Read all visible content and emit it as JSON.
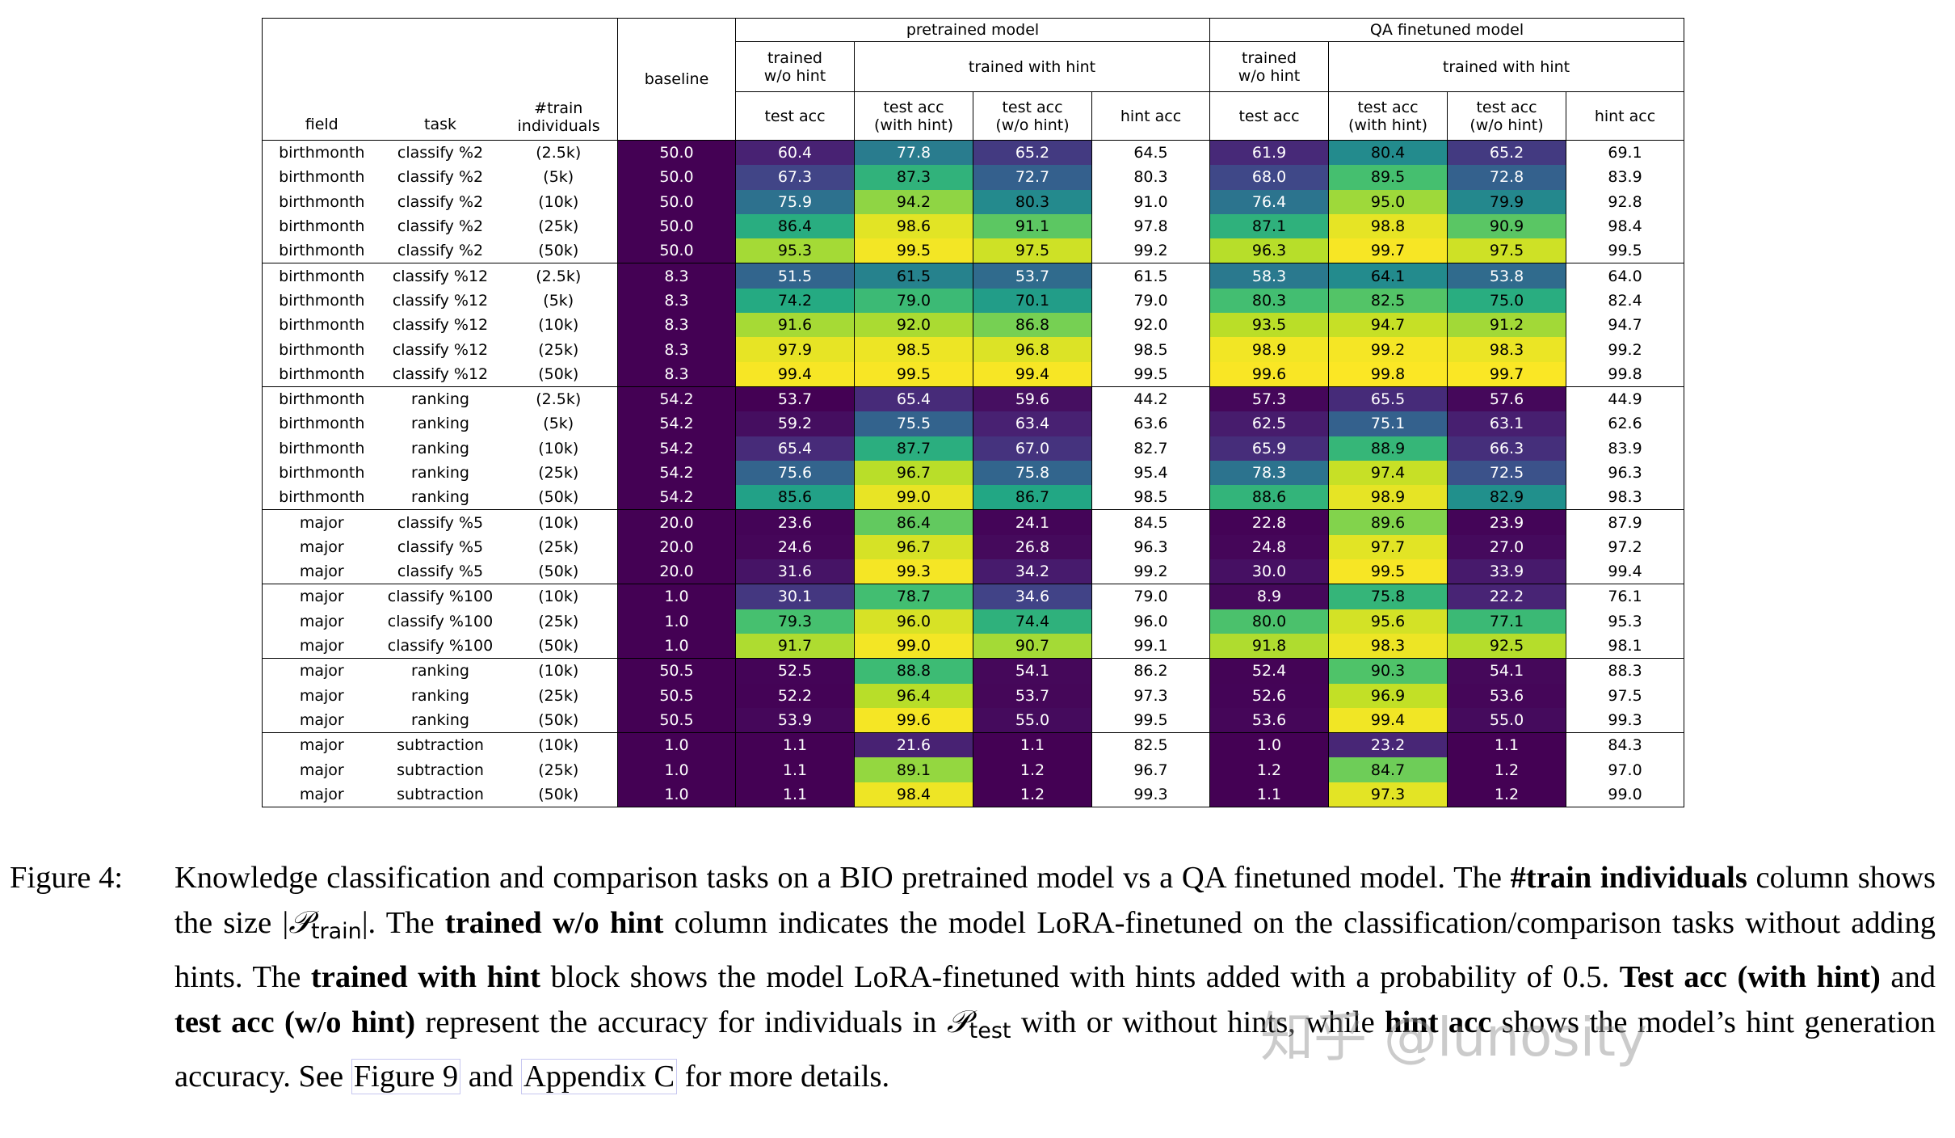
{
  "table": {
    "header": {
      "field": "field",
      "task": "task",
      "train": "#train individuals",
      "baseline": "baseline",
      "blocks": [
        {
          "name": "pretrained model",
          "wo": "trained w/o hint",
          "with": "trained with hint",
          "cols": [
            "test acc",
            "test acc (with hint)",
            "test acc (w/o hint)",
            "hint acc"
          ]
        },
        {
          "name": "QA finetuned model",
          "wo": "trained w/o hint",
          "with": "trained with hint",
          "cols": [
            "test acc",
            "test acc (with hint)",
            "test acc (w/o hint)",
            "hint acc"
          ]
        }
      ]
    },
    "colormap": "viridis",
    "baseline_color": "#440154",
    "rows": [
      [
        "birthmonth",
        "classify %2",
        "(2.5k)",
        "50.0",
        "60.4",
        "77.8",
        "65.2",
        "64.5",
        "61.9",
        "80.4",
        "65.2",
        "69.1"
      ],
      [
        "birthmonth",
        "classify %2",
        "(5k)",
        "50.0",
        "67.3",
        "87.3",
        "72.7",
        "80.3",
        "68.0",
        "89.5",
        "72.8",
        "83.9"
      ],
      [
        "birthmonth",
        "classify %2",
        "(10k)",
        "50.0",
        "75.9",
        "94.2",
        "80.3",
        "91.0",
        "76.4",
        "95.0",
        "79.9",
        "92.8"
      ],
      [
        "birthmonth",
        "classify %2",
        "(25k)",
        "50.0",
        "86.4",
        "98.6",
        "91.1",
        "97.8",
        "87.1",
        "98.8",
        "90.9",
        "98.4"
      ],
      [
        "birthmonth",
        "classify %2",
        "(50k)",
        "50.0",
        "95.3",
        "99.5",
        "97.5",
        "99.2",
        "96.3",
        "99.7",
        "97.5",
        "99.5"
      ],
      [
        "birthmonth",
        "classify %12",
        "(2.5k)",
        "8.3",
        "51.5",
        "61.5",
        "53.7",
        "61.5",
        "58.3",
        "64.1",
        "53.8",
        "64.0"
      ],
      [
        "birthmonth",
        "classify %12",
        "(5k)",
        "8.3",
        "74.2",
        "79.0",
        "70.1",
        "79.0",
        "80.3",
        "82.5",
        "75.0",
        "82.4"
      ],
      [
        "birthmonth",
        "classify %12",
        "(10k)",
        "8.3",
        "91.6",
        "92.0",
        "86.8",
        "92.0",
        "93.5",
        "94.7",
        "91.2",
        "94.7"
      ],
      [
        "birthmonth",
        "classify %12",
        "(25k)",
        "8.3",
        "97.9",
        "98.5",
        "96.8",
        "98.5",
        "98.9",
        "99.2",
        "98.3",
        "99.2"
      ],
      [
        "birthmonth",
        "classify %12",
        "(50k)",
        "8.3",
        "99.4",
        "99.5",
        "99.4",
        "99.5",
        "99.6",
        "99.8",
        "99.7",
        "99.8"
      ],
      [
        "birthmonth",
        "ranking",
        "(2.5k)",
        "54.2",
        "53.7",
        "65.4",
        "59.6",
        "44.2",
        "57.3",
        "65.5",
        "57.6",
        "44.9"
      ],
      [
        "birthmonth",
        "ranking",
        "(5k)",
        "54.2",
        "59.2",
        "75.5",
        "63.4",
        "63.6",
        "62.5",
        "75.1",
        "63.1",
        "62.6"
      ],
      [
        "birthmonth",
        "ranking",
        "(10k)",
        "54.2",
        "65.4",
        "87.7",
        "67.0",
        "82.7",
        "65.9",
        "88.9",
        "66.3",
        "83.9"
      ],
      [
        "birthmonth",
        "ranking",
        "(25k)",
        "54.2",
        "75.6",
        "96.7",
        "75.8",
        "95.4",
        "78.3",
        "97.4",
        "72.5",
        "96.3"
      ],
      [
        "birthmonth",
        "ranking",
        "(50k)",
        "54.2",
        "85.6",
        "99.0",
        "86.7",
        "98.5",
        "88.6",
        "98.9",
        "82.9",
        "98.3"
      ],
      [
        "major",
        "classify %5",
        "(10k)",
        "20.0",
        "23.6",
        "86.4",
        "24.1",
        "84.5",
        "22.8",
        "89.6",
        "23.9",
        "87.9"
      ],
      [
        "major",
        "classify %5",
        "(25k)",
        "20.0",
        "24.6",
        "96.7",
        "26.8",
        "96.3",
        "24.8",
        "97.7",
        "27.0",
        "97.2"
      ],
      [
        "major",
        "classify %5",
        "(50k)",
        "20.0",
        "31.6",
        "99.3",
        "34.2",
        "99.2",
        "30.0",
        "99.5",
        "33.9",
        "99.4"
      ],
      [
        "major",
        "classify %100",
        "(10k)",
        "1.0",
        "30.1",
        "78.7",
        "34.6",
        "79.0",
        "8.9",
        "75.8",
        "22.2",
        "76.1"
      ],
      [
        "major",
        "classify %100",
        "(25k)",
        "1.0",
        "79.3",
        "96.0",
        "74.4",
        "96.0",
        "80.0",
        "95.6",
        "77.1",
        "95.3"
      ],
      [
        "major",
        "classify %100",
        "(50k)",
        "1.0",
        "91.7",
        "99.0",
        "90.7",
        "99.1",
        "91.8",
        "98.3",
        "92.5",
        "98.1"
      ],
      [
        "major",
        "ranking",
        "(10k)",
        "50.5",
        "52.5",
        "88.8",
        "54.1",
        "86.2",
        "52.4",
        "90.3",
        "54.1",
        "88.3"
      ],
      [
        "major",
        "ranking",
        "(25k)",
        "50.5",
        "52.2",
        "96.4",
        "53.7",
        "97.3",
        "52.6",
        "96.9",
        "53.6",
        "97.5"
      ],
      [
        "major",
        "ranking",
        "(50k)",
        "50.5",
        "53.9",
        "99.6",
        "55.0",
        "99.5",
        "53.6",
        "99.4",
        "55.0",
        "99.3"
      ],
      [
        "major",
        "subtraction",
        "(10k)",
        "1.0",
        "1.1",
        "21.6",
        "1.1",
        "82.5",
        "1.0",
        "23.2",
        "1.1",
        "84.3"
      ],
      [
        "major",
        "subtraction",
        "(25k)",
        "1.0",
        "1.1",
        "89.1",
        "1.2",
        "96.7",
        "1.2",
        "84.7",
        "1.2",
        "97.0"
      ],
      [
        "major",
        "subtraction",
        "(50k)",
        "1.0",
        "1.1",
        "98.4",
        "1.2",
        "99.3",
        "1.1",
        "97.3",
        "1.2",
        "99.0"
      ]
    ]
  },
  "caption": {
    "label": "Figure 4:",
    "segments": [
      {
        "text": "Knowledge classification and comparison tasks on a BIO pretrained model vs a QA finetuned model. The ",
        "style": "normal"
      },
      {
        "text": "#train individuals",
        "style": "bold"
      },
      {
        "text": " column shows the size |",
        "style": "normal"
      },
      {
        "text": "𝒫",
        "style": "math"
      },
      {
        "text": "train",
        "style": "sub"
      },
      {
        "text": "|. The ",
        "style": "normal"
      },
      {
        "text": "trained w/o hint",
        "style": "bold"
      },
      {
        "text": " column indicates the model LoRA-finetuned on the classification/comparison tasks without adding hints. The ",
        "style": "normal"
      },
      {
        "text": "trained with hint",
        "style": "bold"
      },
      {
        "text": " block shows the model LoRA-finetuned with hints added with a probability of 0.5. ",
        "style": "normal"
      },
      {
        "text": "Test acc (with hint)",
        "style": "bold"
      },
      {
        "text": " and ",
        "style": "normal"
      },
      {
        "text": "test acc (w/o hint)",
        "style": "bold"
      },
      {
        "text": " represent the accuracy for individuals in ",
        "style": "normal"
      },
      {
        "text": "𝒫",
        "style": "math"
      },
      {
        "text": "test",
        "style": "sub"
      },
      {
        "text": " with or without hints, while ",
        "style": "normal"
      },
      {
        "text": "hint acc",
        "style": "bold"
      },
      {
        "text": " shows the model’s hint generation accuracy. See ",
        "style": "normal"
      },
      {
        "text": "Figure 9",
        "style": "link"
      },
      {
        "text": " and ",
        "style": "normal"
      },
      {
        "text": "Appendix C",
        "style": "link"
      },
      {
        "text": " for more details.",
        "style": "normal"
      }
    ]
  },
  "watermark": "知乎 @lunosity"
}
